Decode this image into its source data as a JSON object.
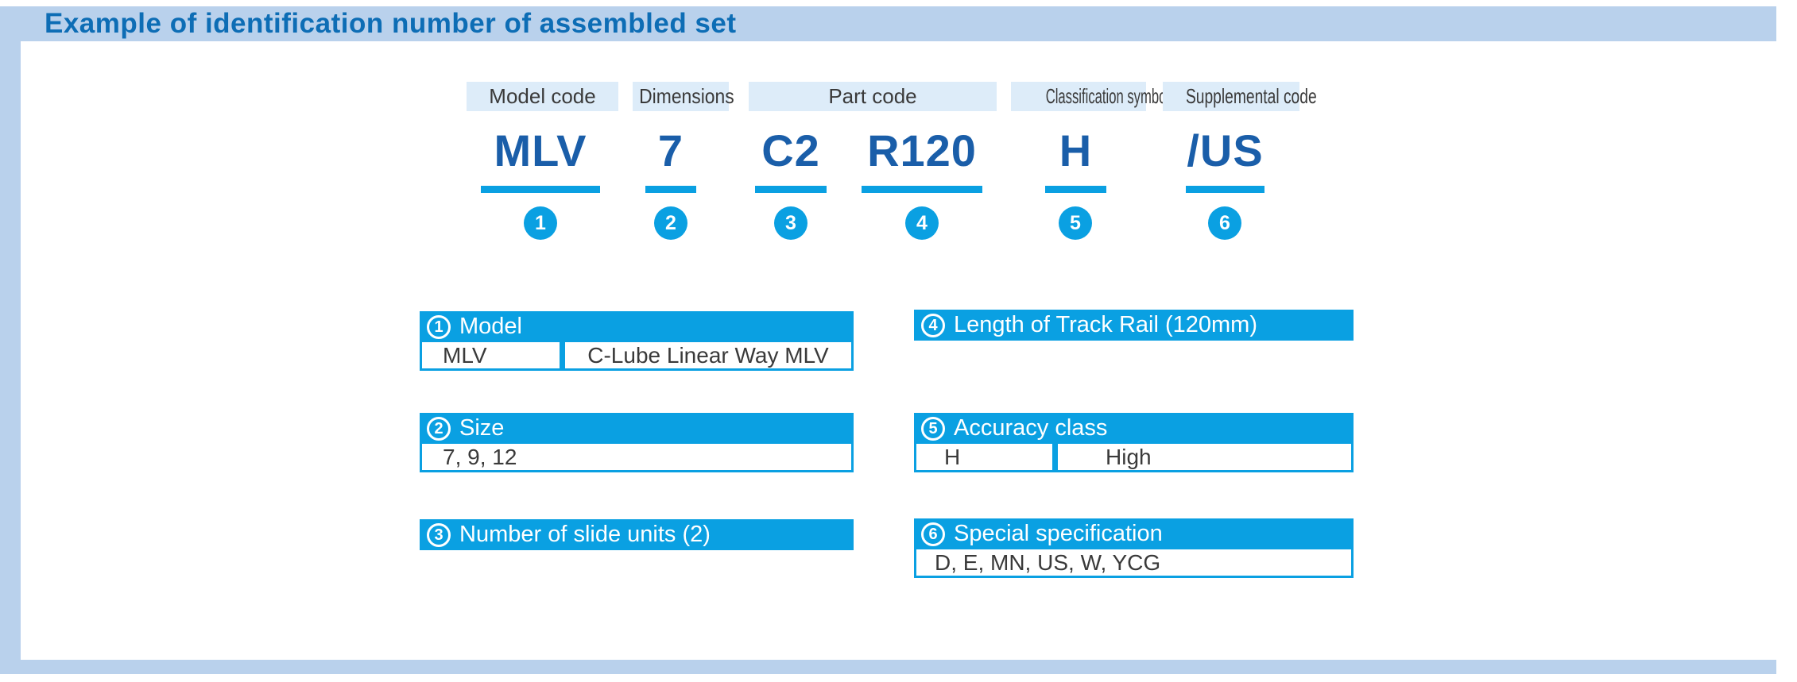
{
  "title": "Example of identification number of assembled set",
  "labels": [
    {
      "text": "Model code"
    },
    {
      "text": "Dimensions"
    },
    {
      "text": "Part code"
    },
    {
      "text": "Classification symbol"
    },
    {
      "text": "Supplemental code"
    }
  ],
  "codes": [
    {
      "text": "MLV",
      "number": "1"
    },
    {
      "text": "7",
      "number": "2"
    },
    {
      "text": "C2",
      "number": "3"
    },
    {
      "text": "R120",
      "number": "4"
    },
    {
      "text": "H",
      "number": "5"
    },
    {
      "text": "/US",
      "number": "6"
    }
  ],
  "tables": [
    {
      "number": "1",
      "heading": "Model",
      "cells": [
        "MLV",
        "C-Lube Linear Way MLV"
      ]
    },
    {
      "number": "2",
      "heading": "Size",
      "cells": [
        "7, 9, 12"
      ]
    },
    {
      "number": "3",
      "heading": "Number of slide units (2)",
      "cells": []
    },
    {
      "number": "4",
      "heading": "Length of Track Rail (120mm)",
      "cells": []
    },
    {
      "number": "5",
      "heading": "Accuracy class",
      "cells": [
        "H",
        "High"
      ]
    },
    {
      "number": "6",
      "heading": "Special specification",
      "cells": [
        "D, E, MN, US, W, YCG"
      ]
    }
  ],
  "colors": {
    "accent": "#0aa0e2",
    "frame": "#b9d1ec",
    "label_bg": "#ddecf9",
    "title_text": "#0d6db5",
    "code_text": "#1a5ea9",
    "cell_text": "#3a3a3a"
  }
}
